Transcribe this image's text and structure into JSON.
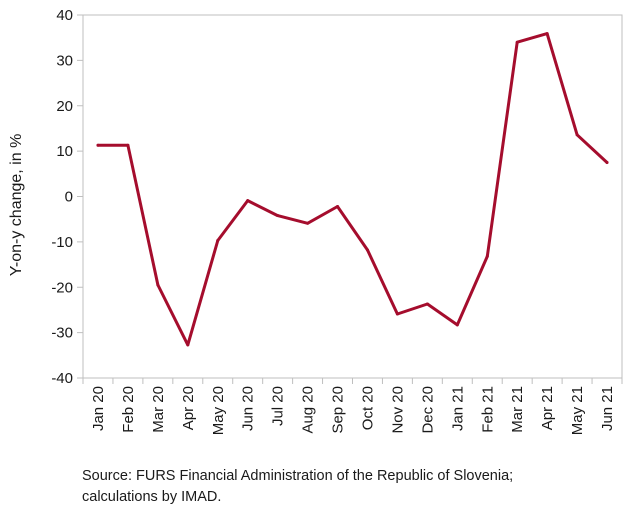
{
  "chart_data": {
    "type": "line",
    "categories": [
      "Jan 20",
      "Feb 20",
      "Mar 20",
      "Apr 20",
      "May 20",
      "Jun 20",
      "Jul 20",
      "Aug 20",
      "Sep 20",
      "Oct 20",
      "Nov 20",
      "Dec 20",
      "Jan 21",
      "Feb 21",
      "Mar 21",
      "Apr 21",
      "May 21",
      "Jun 21"
    ],
    "series": [
      {
        "values": [
          11.3,
          11.3,
          -19.5,
          -32.7,
          -9.7,
          -0.9,
          -4.2,
          -5.9,
          -2.2,
          -11.8,
          -25.9,
          -23.7,
          -28.3,
          -13.2,
          34.0,
          35.9,
          13.6,
          7.5
        ],
        "color": "#a50d2d"
      }
    ],
    "ylabel": "Y-on-y change, in %",
    "xlabel": "",
    "ylim": [
      -40,
      40
    ],
    "yticks": [
      40,
      30,
      20,
      10,
      0,
      -10,
      -20,
      -30,
      -40
    ],
    "grid": false,
    "legend": "none",
    "axis_color": "#bfbfbf"
  },
  "source_note": "Source: FURS Financial Administration of the Republic of Slovenia; calculations by IMAD."
}
